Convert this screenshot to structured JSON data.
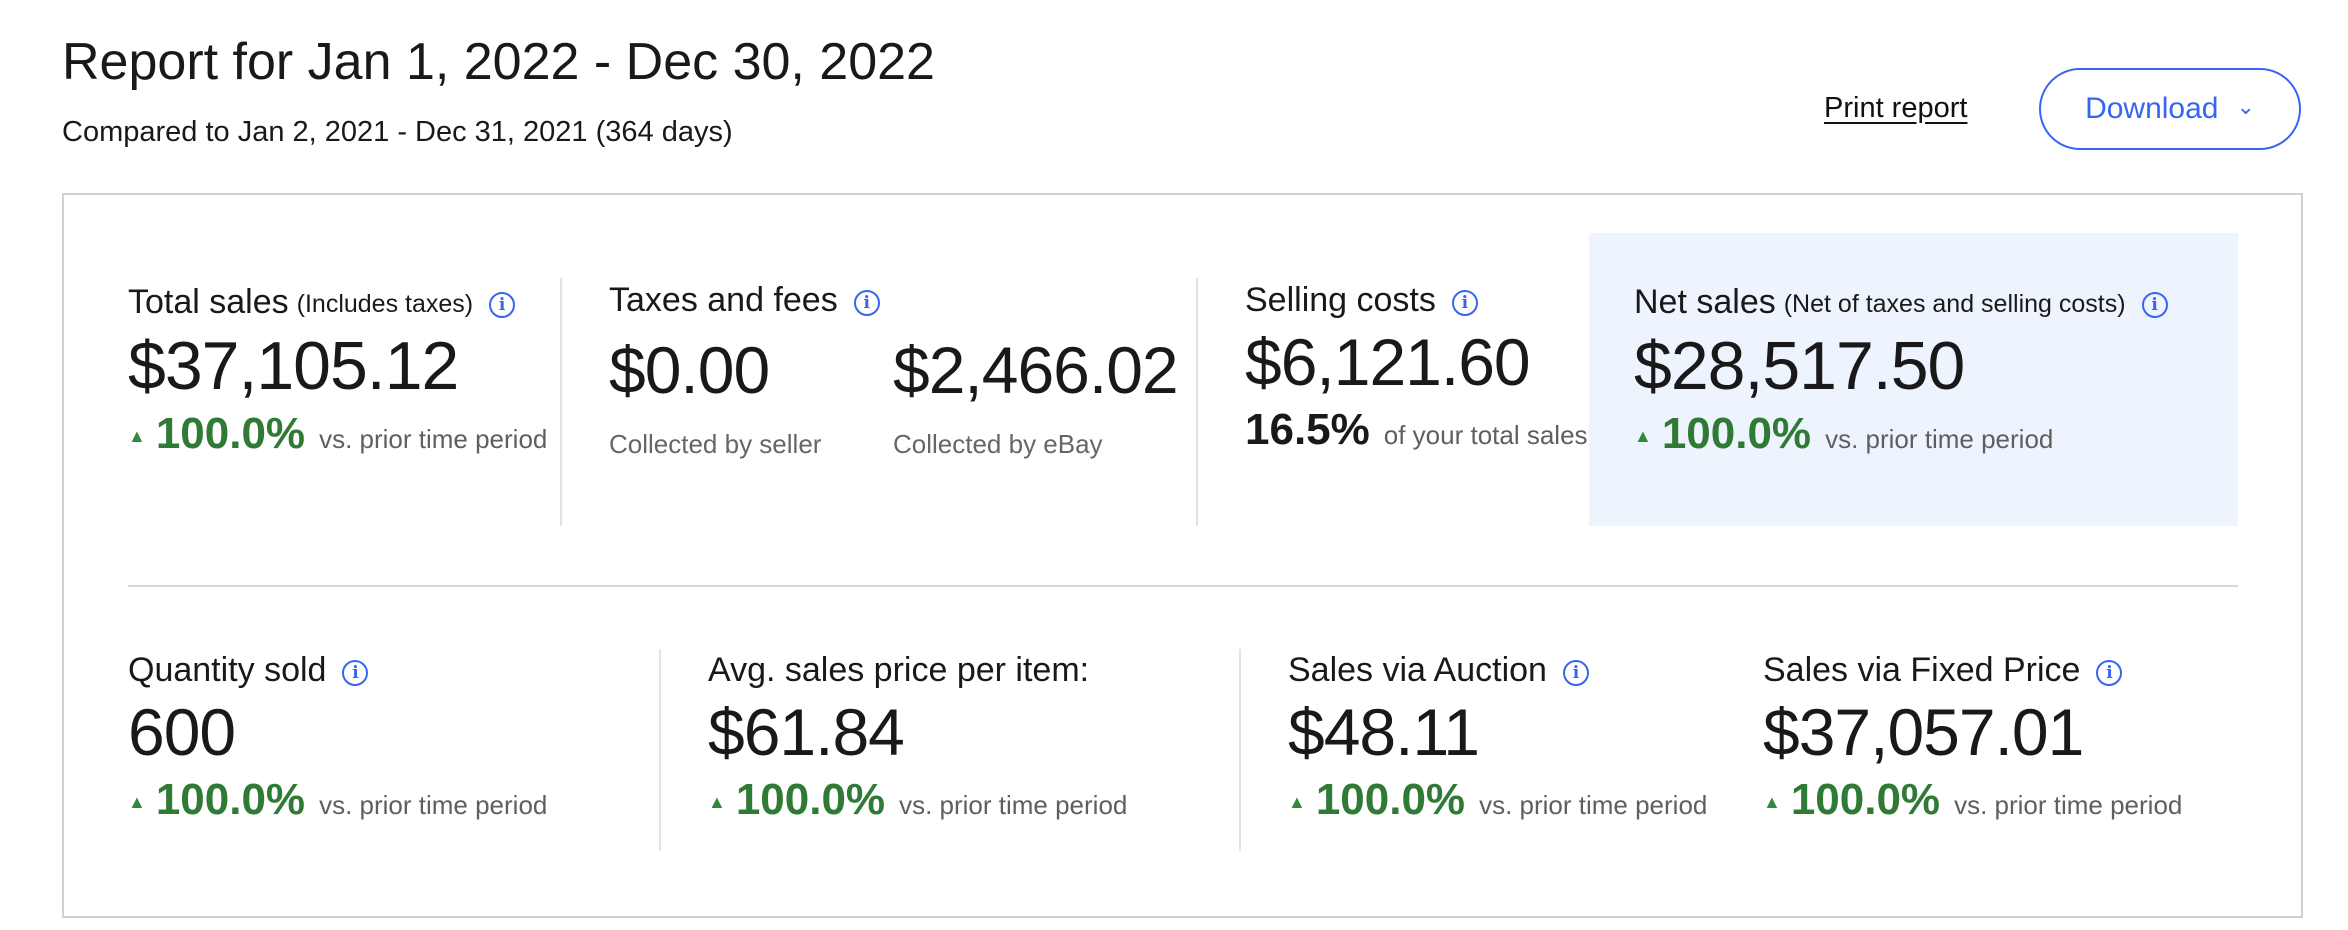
{
  "header": {
    "title": "Report for Jan 1, 2022 - Dec 30, 2022",
    "subtitle": "Compared to Jan 2, 2021 - Dec 31, 2021 (364 days)",
    "print_label": "Print report",
    "download_label": "Download"
  },
  "metrics": {
    "total_sales": {
      "label": "Total sales",
      "qualifier": "(Includes taxes)",
      "value": "$37,105.12",
      "change": "100.0%",
      "vs": "vs. prior time period"
    },
    "taxes_fees": {
      "label": "Taxes and fees",
      "seller_value": "$0.00",
      "seller_note": "Collected by seller",
      "ebay_value": "$2,466.02",
      "ebay_note": "Collected by eBay"
    },
    "selling_costs": {
      "label": "Selling costs",
      "value": "$6,121.60",
      "share": "16.5%",
      "share_note": "of your total sales"
    },
    "net_sales": {
      "label": "Net sales",
      "qualifier": "(Net of taxes and selling costs)",
      "value": "$28,517.50",
      "change": "100.0%",
      "vs": "vs. prior time period"
    },
    "quantity_sold": {
      "label": "Quantity sold",
      "value": "600",
      "change": "100.0%",
      "vs": "vs. prior time period"
    },
    "avg_price": {
      "label": "Avg. sales price per item:",
      "value": "$61.84",
      "change": "100.0%",
      "vs": "vs. prior time period"
    },
    "auction": {
      "label": "Sales via Auction",
      "value": "$48.11",
      "change": "100.0%",
      "vs": "vs. prior time period"
    },
    "fixed_price": {
      "label": "Sales via Fixed Price",
      "value": "$37,057.01",
      "change": "100.0%",
      "vs": "vs. prior time period"
    }
  },
  "icons": {
    "info": "info-icon",
    "trend_up": "trend-up-icon",
    "dropdown": "chevron-down-icon"
  },
  "colors": {
    "accent": "#3665f3",
    "positive": "#2f7a35",
    "highlight_bg": "#eef4fd"
  }
}
